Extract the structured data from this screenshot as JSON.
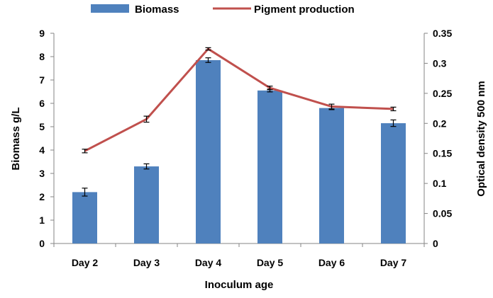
{
  "chart_data": {
    "type": "bar+line",
    "title": "",
    "xlabel": "Inoculum age",
    "ylabel": "Biomass g/L",
    "y2label": "Optical density 500 nm",
    "categories": [
      "Day 2",
      "Day 3",
      "Day 4",
      "Day 5",
      "Day 6",
      "Day 7"
    ],
    "ylim": [
      0,
      9
    ],
    "yticks": [
      0,
      1,
      2,
      3,
      4,
      5,
      6,
      7,
      8,
      9
    ],
    "y2lim": [
      0,
      0.35
    ],
    "y2ticks": [
      "0",
      "0.05",
      "0.1",
      "0.15",
      "0.2",
      "0.25",
      "0.3",
      "0.35"
    ],
    "grid": false,
    "legend_position": "top",
    "series": [
      {
        "name": "Biomass",
        "type": "bar",
        "axis": "left",
        "color": "#4F81BD",
        "values": [
          2.2,
          3.3,
          7.85,
          6.55,
          5.8,
          5.15
        ],
        "errors": [
          0.17,
          0.11,
          0.1,
          0.06,
          0.07,
          0.14
        ]
      },
      {
        "name": "Pigment production",
        "type": "line",
        "axis": "right",
        "color": "#C0504D",
        "values": [
          0.154,
          0.207,
          0.324,
          0.259,
          0.228,
          0.224
        ],
        "errors": [
          0.003,
          0.005,
          0.002,
          0.003,
          0.004,
          0.003
        ]
      }
    ]
  }
}
